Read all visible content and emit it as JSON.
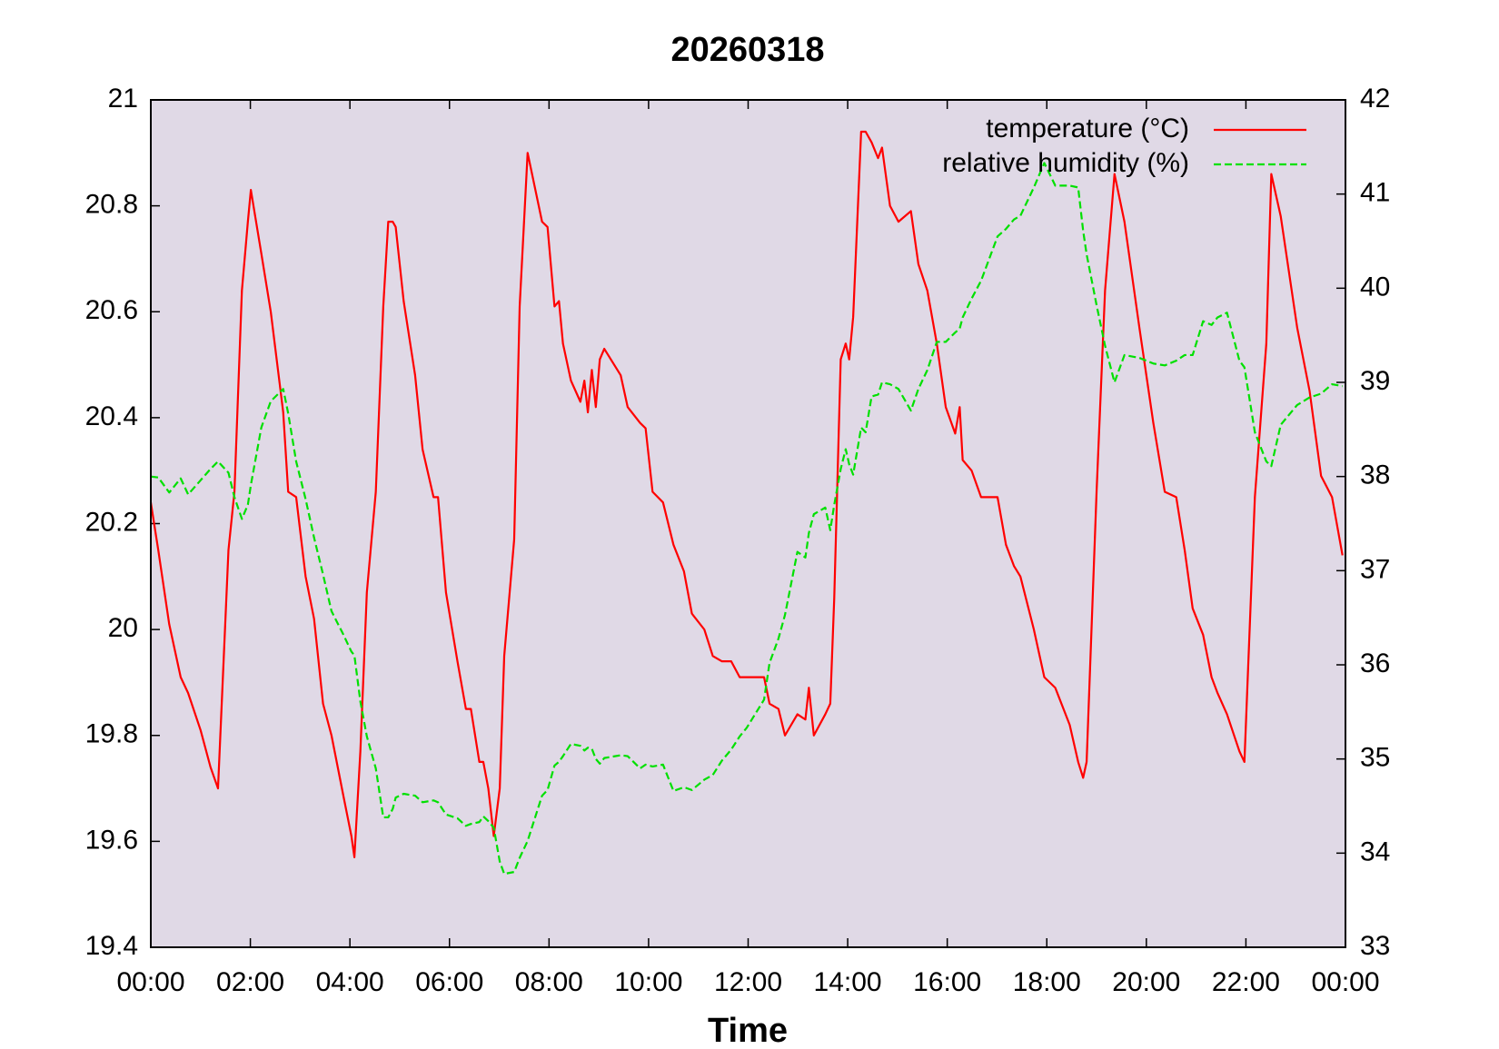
{
  "chart_data": {
    "type": "line",
    "title": "20260318",
    "x_label": "Time",
    "x": [
      0,
      0.15,
      0.37,
      0.6,
      0.75,
      1.0,
      1.2,
      1.35,
      1.56,
      1.68,
      1.83,
      1.95,
      2.01,
      2.22,
      2.41,
      2.66,
      2.76,
      2.92,
      3.11,
      3.28,
      3.46,
      3.63,
      3.86,
      4.03,
      4.09,
      4.21,
      4.34,
      4.52,
      4.67,
      4.77,
      4.86,
      4.92,
      5.08,
      5.31,
      5.46,
      5.68,
      5.77,
      5.93,
      6.16,
      6.33,
      6.43,
      6.6,
      6.68,
      6.78,
      6.89,
      7.01,
      7.1,
      7.3,
      7.41,
      7.57,
      7.86,
      7.97,
      8.11,
      8.2,
      8.28,
      8.44,
      8.63,
      8.71,
      8.78,
      8.86,
      8.94,
      9.02,
      9.11,
      9.44,
      9.58,
      9.83,
      9.94,
      10.08,
      10.29,
      10.5,
      10.71,
      10.87,
      11.12,
      11.29,
      11.47,
      11.66,
      11.83,
      11.97,
      12.32,
      12.43,
      12.61,
      12.74,
      12.99,
      13.15,
      13.22,
      13.32,
      13.55,
      13.65,
      13.73,
      13.86,
      13.96,
      14.03,
      14.11,
      14.27,
      14.36,
      14.48,
      14.61,
      14.69,
      14.85,
      15.02,
      15.27,
      15.42,
      15.6,
      15.79,
      15.97,
      16.16,
      16.25,
      16.31,
      16.49,
      16.68,
      17.01,
      17.18,
      17.34,
      17.47,
      17.74,
      17.95,
      18.17,
      18.46,
      18.63,
      18.73,
      18.8,
      19.0,
      19.17,
      19.36,
      19.56,
      19.86,
      20.14,
      20.37,
      20.6,
      20.77,
      20.93,
      21.14,
      21.31,
      21.43,
      21.62,
      21.87,
      21.97,
      22.18,
      22.41,
      22.51,
      22.7,
      23.03,
      23.28,
      23.51,
      23.73,
      23.94
    ],
    "series": [
      {
        "name": "temperature (°C)",
        "color": "#ff0000",
        "dash": false,
        "axis": "y",
        "values": [
          20.24,
          20.15,
          20.01,
          19.91,
          19.88,
          19.81,
          19.74,
          19.7,
          20.15,
          20.26,
          20.64,
          20.77,
          20.83,
          20.71,
          20.6,
          20.41,
          20.26,
          20.25,
          20.1,
          20.02,
          19.86,
          19.8,
          19.69,
          19.61,
          19.57,
          19.77,
          20.07,
          20.26,
          20.61,
          20.77,
          20.77,
          20.76,
          20.62,
          20.48,
          20.34,
          20.25,
          20.25,
          20.07,
          19.94,
          19.85,
          19.85,
          19.75,
          19.75,
          19.7,
          19.61,
          19.7,
          19.95,
          20.17,
          20.61,
          20.9,
          20.77,
          20.76,
          20.61,
          20.62,
          20.54,
          20.47,
          20.43,
          20.47,
          20.41,
          20.49,
          20.42,
          20.51,
          20.53,
          20.48,
          20.42,
          20.39,
          20.38,
          20.26,
          20.24,
          20.16,
          20.11,
          20.03,
          20.0,
          19.95,
          19.94,
          19.94,
          19.91,
          19.91,
          19.91,
          19.86,
          19.85,
          19.8,
          19.84,
          19.83,
          19.89,
          19.8,
          19.84,
          19.86,
          20.06,
          20.51,
          20.54,
          20.51,
          20.59,
          20.94,
          20.94,
          20.92,
          20.89,
          20.91,
          20.8,
          20.77,
          20.79,
          20.69,
          20.64,
          20.54,
          20.42,
          20.37,
          20.42,
          20.32,
          20.3,
          20.25,
          20.25,
          20.16,
          20.12,
          20.1,
          20.0,
          19.91,
          19.89,
          19.82,
          19.75,
          19.72,
          19.75,
          20.26,
          20.64,
          20.86,
          20.77,
          20.57,
          20.39,
          20.26,
          20.25,
          20.15,
          20.04,
          19.99,
          19.91,
          19.88,
          19.84,
          19.77,
          19.75,
          20.25,
          20.54,
          20.86,
          20.78,
          20.57,
          20.45,
          20.29,
          20.25,
          20.14
        ]
      },
      {
        "name": "relative humidity (%)",
        "color": "#00e000",
        "dash": true,
        "axis": "y2",
        "values": [
          38.0,
          37.99,
          37.83,
          37.98,
          37.81,
          37.96,
          38.08,
          38.16,
          38.04,
          37.78,
          37.55,
          37.7,
          37.91,
          38.52,
          38.8,
          38.93,
          38.67,
          38.16,
          37.76,
          37.35,
          36.96,
          36.57,
          36.33,
          36.14,
          36.1,
          35.61,
          35.24,
          34.9,
          34.38,
          34.38,
          34.47,
          34.59,
          34.63,
          34.61,
          34.54,
          34.56,
          34.54,
          34.41,
          34.37,
          34.29,
          34.31,
          34.33,
          34.39,
          34.34,
          34.27,
          33.91,
          33.78,
          33.8,
          33.95,
          34.13,
          34.61,
          34.67,
          34.93,
          34.97,
          35.03,
          35.16,
          35.14,
          35.09,
          35.12,
          35.11,
          35.0,
          34.95,
          35.01,
          35.04,
          35.03,
          34.9,
          34.94,
          34.92,
          34.94,
          34.66,
          34.7,
          34.67,
          34.78,
          34.83,
          34.98,
          35.1,
          35.24,
          35.33,
          35.63,
          36.02,
          36.28,
          36.53,
          37.2,
          37.14,
          37.4,
          37.6,
          37.67,
          37.43,
          37.7,
          38.08,
          38.29,
          38.13,
          38.02,
          38.52,
          38.47,
          38.85,
          38.87,
          39.0,
          38.98,
          38.93,
          38.7,
          38.93,
          39.13,
          39.43,
          39.43,
          39.53,
          39.57,
          39.69,
          39.89,
          40.08,
          40.55,
          40.63,
          40.73,
          40.77,
          41.07,
          41.33,
          41.09,
          41.09,
          41.07,
          40.61,
          40.36,
          39.82,
          39.39,
          39.0,
          39.29,
          39.26,
          39.2,
          39.18,
          39.23,
          39.29,
          39.29,
          39.65,
          39.61,
          39.69,
          39.74,
          39.23,
          39.16,
          38.47,
          38.16,
          38.11,
          38.55,
          38.76,
          38.84,
          38.88,
          38.98,
          38.96
        ]
      }
    ],
    "xlim": [
      0,
      24
    ],
    "xticks": [
      {
        "value": 0,
        "label": "00:00"
      },
      {
        "value": 2,
        "label": "02:00"
      },
      {
        "value": 4,
        "label": "04:00"
      },
      {
        "value": 6,
        "label": "06:00"
      },
      {
        "value": 8,
        "label": "08:00"
      },
      {
        "value": 10,
        "label": "10:00"
      },
      {
        "value": 12,
        "label": "12:00"
      },
      {
        "value": 14,
        "label": "14:00"
      },
      {
        "value": 16,
        "label": "16:00"
      },
      {
        "value": 18,
        "label": "18:00"
      },
      {
        "value": 20,
        "label": "20:00"
      },
      {
        "value": 22,
        "label": "22:00"
      },
      {
        "value": 24,
        "label": "00:00"
      }
    ],
    "ylim": [
      19.4,
      21
    ],
    "yticks": [
      19.4,
      19.6,
      19.8,
      20,
      20.2,
      20.4,
      20.6,
      20.8,
      21
    ],
    "y2lim": [
      33,
      42
    ],
    "y2ticks": [
      33,
      34,
      35,
      36,
      37,
      38,
      39,
      40,
      41,
      42
    ],
    "plot_background": "#e0d9e6",
    "legend": "top-right"
  }
}
